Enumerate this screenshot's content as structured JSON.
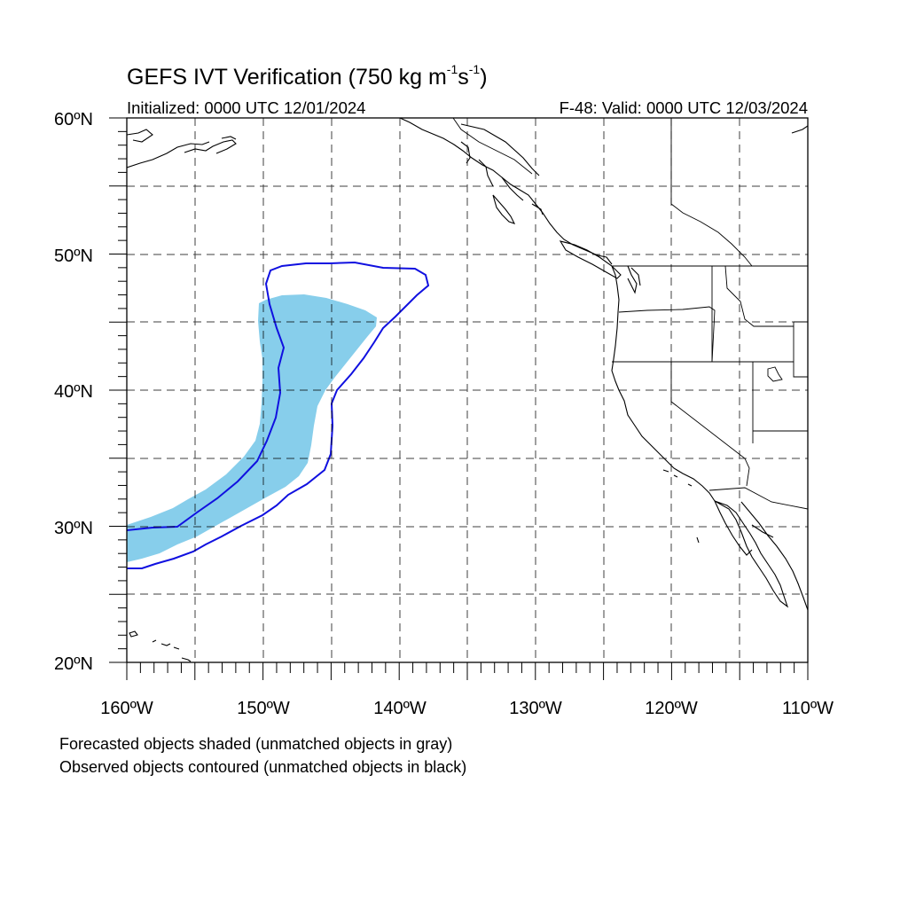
{
  "title": {
    "main": "GEFS IVT Verification (750 kg m",
    "exp1": "-1",
    "mid": "s",
    "exp2": "-1",
    "close": ")"
  },
  "subtitle": {
    "initialized": "Initialized: 0000 UTC 12/01/2024",
    "valid": "F-48: Valid: 0000 UTC 12/03/2024"
  },
  "axes": {
    "lat_labels": [
      "60ºN",
      "50ºN",
      "40ºN",
      "30ºN",
      "20ºN"
    ],
    "lon_labels": [
      "160ºW",
      "150ºW",
      "140ºW",
      "130ºW",
      "120ºW",
      "110ºW"
    ],
    "lat_range": [
      20,
      60
    ],
    "lon_range": [
      -160,
      -110
    ],
    "grid_step_deg": 5
  },
  "colors": {
    "forecast_fill": "#87CEEB",
    "observed_contour": "#1010E0",
    "coastline": "#000000",
    "grid": "#000000"
  },
  "notes": {
    "line1": "Forecasted objects shaded (unmatched objects in gray)",
    "line2": "Observed objects contoured (unmatched objects in black)"
  }
}
